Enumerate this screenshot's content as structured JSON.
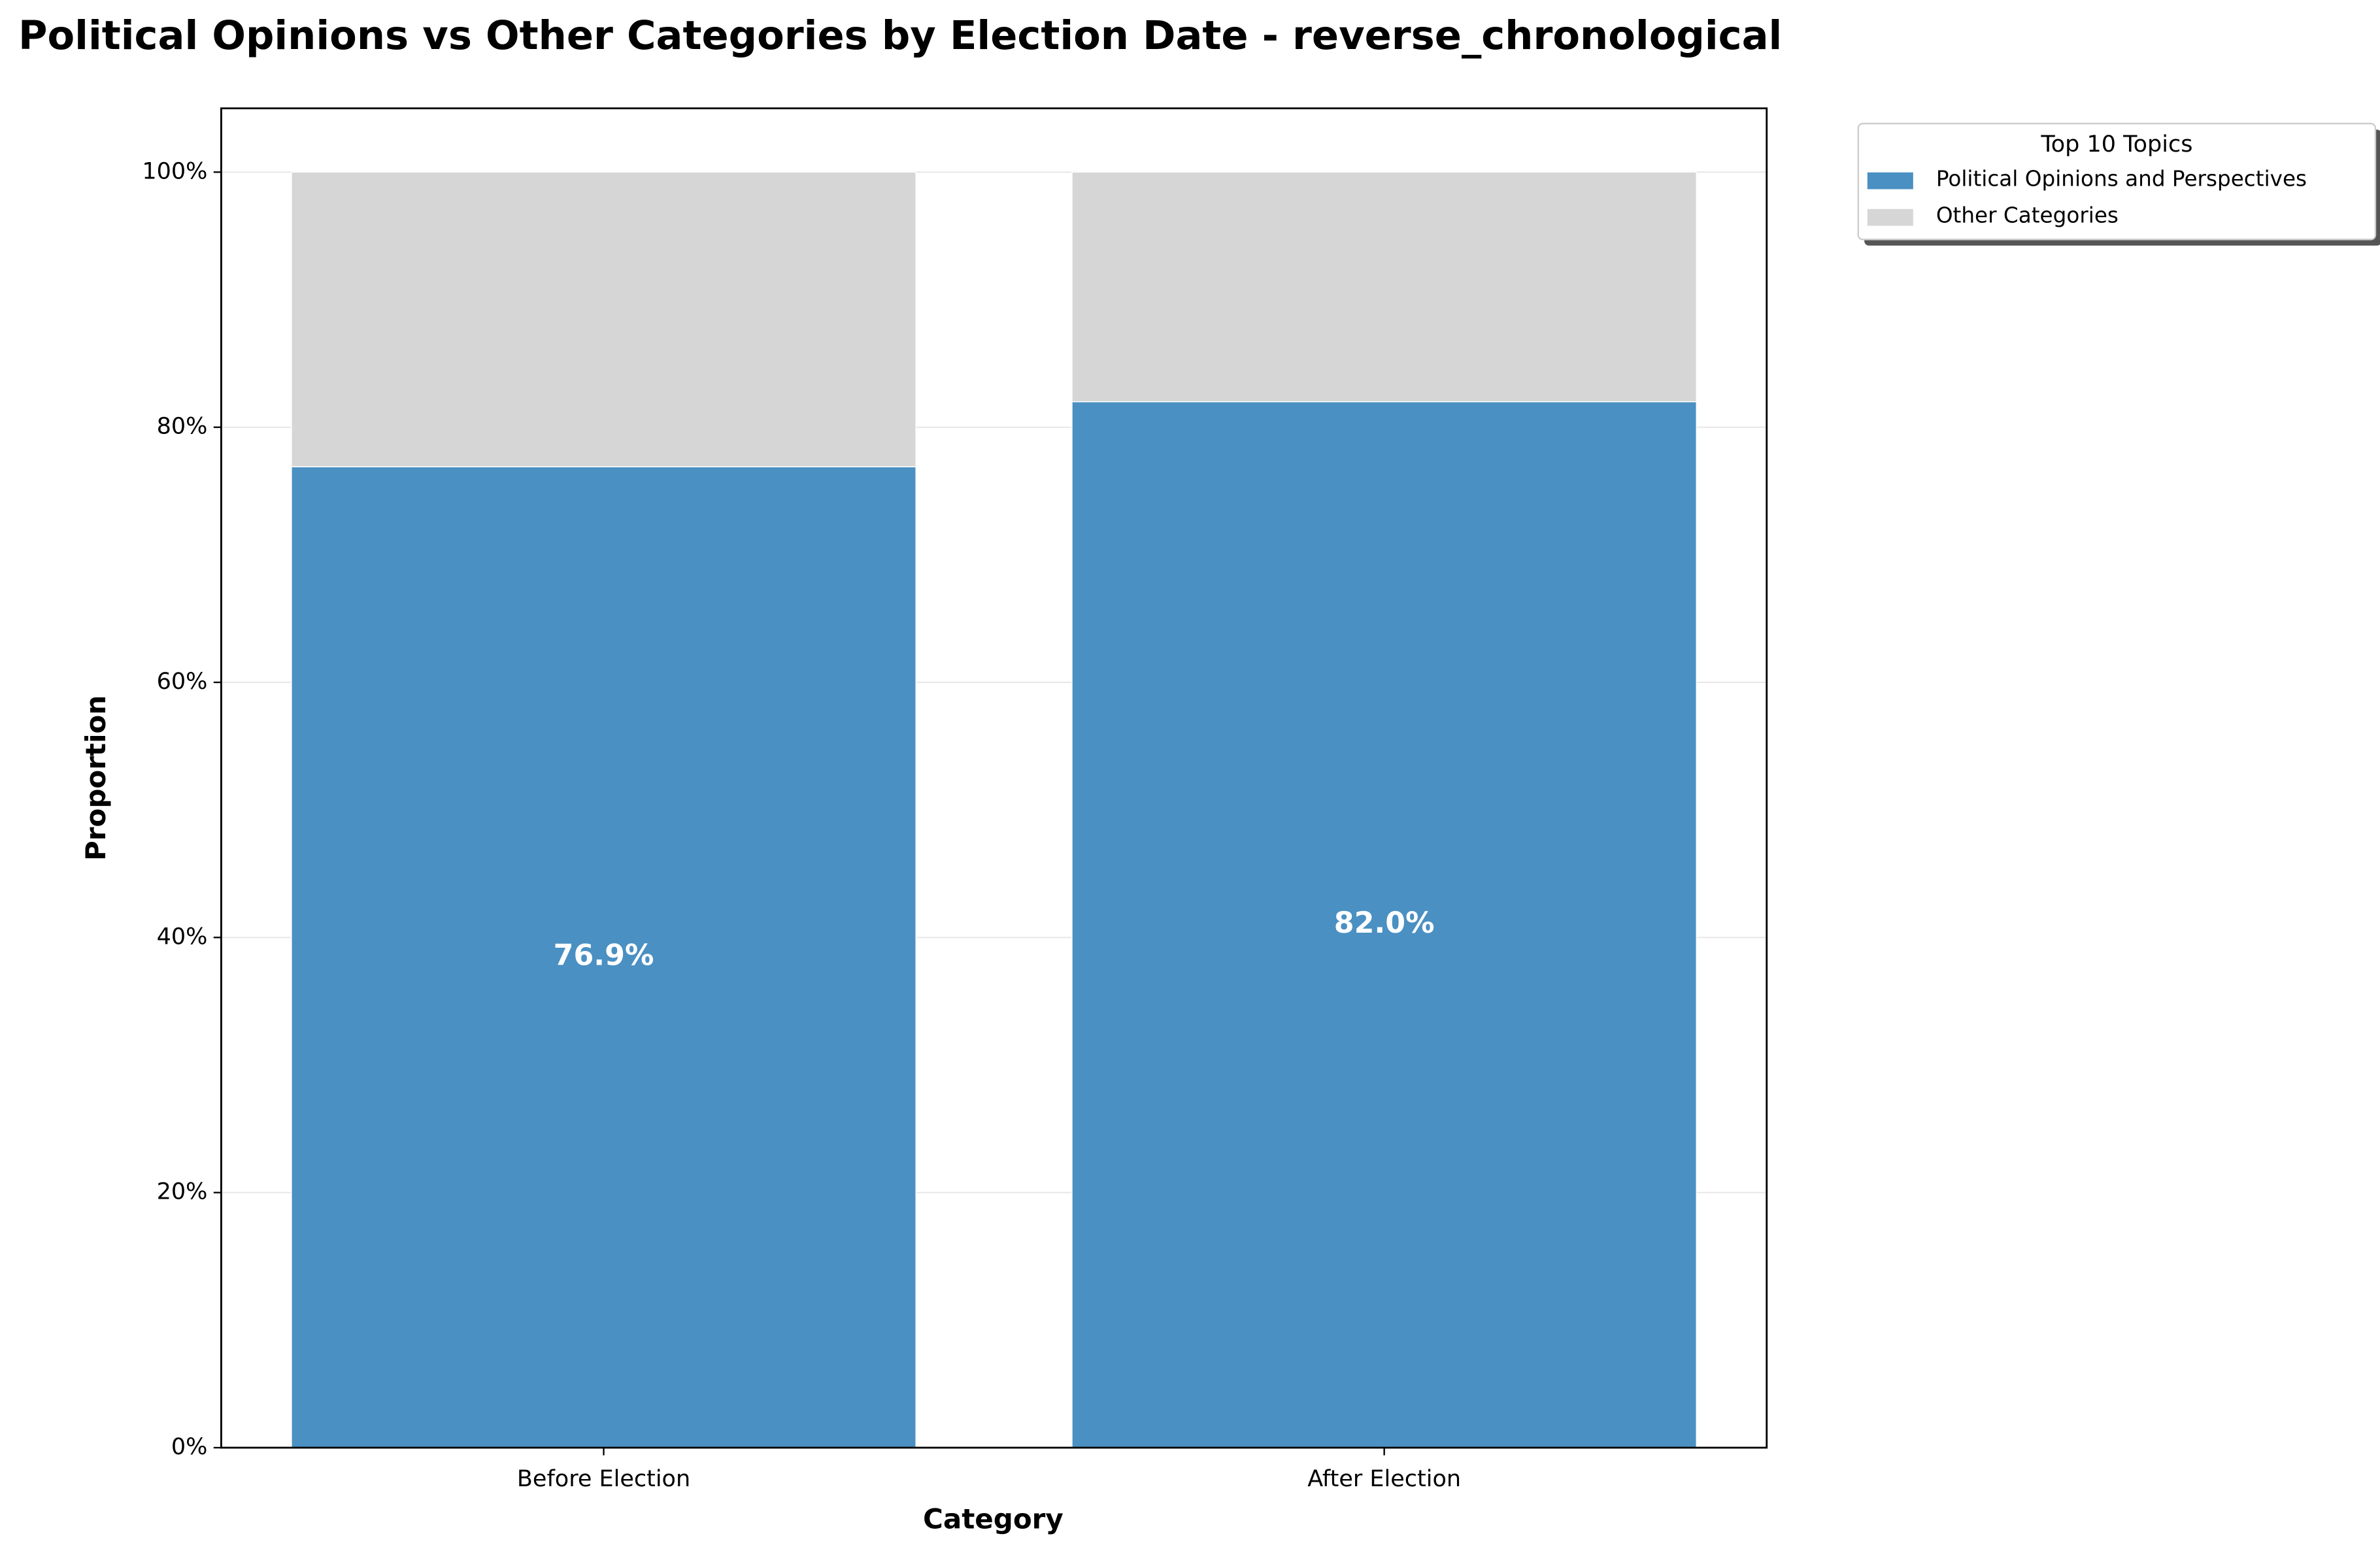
{
  "chart_data": {
    "type": "stacked_bar",
    "title": "Political Opinions vs Other Categories by Election Date - reverse_chronological",
    "x_label": "Category",
    "y_label": "Proportion",
    "categories": [
      "Before Election",
      "After Election"
    ],
    "series": [
      {
        "name": "Political Opinions and Perspectives",
        "color": "#4a90c2",
        "values": [
          76.9,
          82.0
        ],
        "value_labels": [
          "76.9%",
          "82.0%"
        ]
      },
      {
        "name": "Other Categories",
        "color": "#d6d6d6",
        "values": [
          23.1,
          18.0
        ]
      }
    ],
    "ylim": [
      0,
      105
    ],
    "yticks": [
      {
        "value": 0,
        "label": "0%"
      },
      {
        "value": 20,
        "label": "20%"
      },
      {
        "value": 40,
        "label": "40%"
      },
      {
        "value": 60,
        "label": "60%"
      },
      {
        "value": 80,
        "label": "80%"
      },
      {
        "value": 100,
        "label": "100%"
      }
    ],
    "grid": true,
    "legend_title": "Top 10 Topics",
    "legend_position": "outside upper right"
  }
}
